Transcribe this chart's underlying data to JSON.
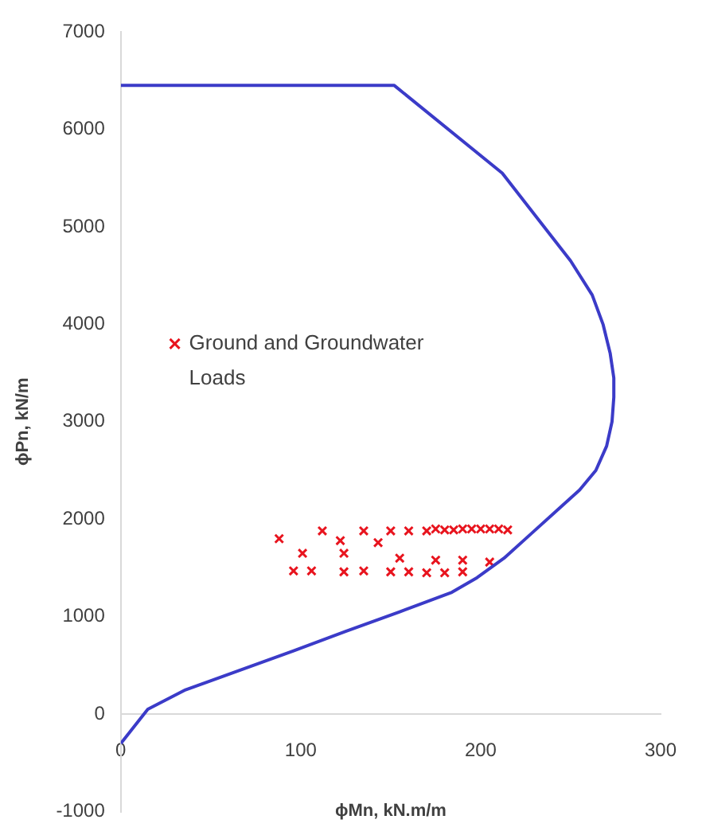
{
  "chart_data": {
    "type": "scatter",
    "xlabel": "ϕMn, kN.m/m",
    "ylabel": "ϕPn, kN/m",
    "xlim": [
      0,
      300
    ],
    "xticks": [
      0,
      100,
      200,
      300
    ],
    "ylim": [
      -1000,
      7000
    ],
    "yticks": [
      -1000,
      0,
      1000,
      2000,
      3000,
      4000,
      5000,
      6000,
      7000
    ],
    "grid": false,
    "legend": "left",
    "marker": "cross",
    "series": [
      {
        "type": "line",
        "color": "#3b3bc8",
        "marker": "none",
        "x": [
          0,
          152,
          212,
          250,
          262,
          268,
          272,
          274,
          274,
          273,
          270,
          264,
          255,
          243,
          228,
          213,
          198,
          184,
          155,
          125,
          96,
          66,
          36,
          15,
          0
        ],
        "values": [
          6450,
          6450,
          5550,
          4650,
          4300,
          4000,
          3700,
          3450,
          3250,
          3000,
          2750,
          2500,
          2300,
          2100,
          1850,
          1600,
          1400,
          1250,
          1050,
          850,
          650,
          450,
          250,
          50,
          -300
        ]
      },
      {
        "name": "Ground and Groundwater Loads",
        "color": "#e8141e",
        "x": [
          112,
          135,
          150,
          160,
          170,
          175,
          180,
          185,
          190,
          195,
          200,
          205,
          210,
          215,
          88,
          122,
          143,
          101,
          124,
          155,
          175,
          190,
          205,
          96,
          106,
          124,
          135,
          150,
          160,
          170,
          180,
          190
        ],
        "values": [
          1880,
          1880,
          1880,
          1880,
          1880,
          1900,
          1890,
          1890,
          1900,
          1900,
          1900,
          1900,
          1900,
          1890,
          1800,
          1780,
          1760,
          1650,
          1650,
          1600,
          1580,
          1580,
          1560,
          1470,
          1470,
          1460,
          1470,
          1460,
          1460,
          1450,
          1450,
          1460
        ]
      }
    ]
  }
}
